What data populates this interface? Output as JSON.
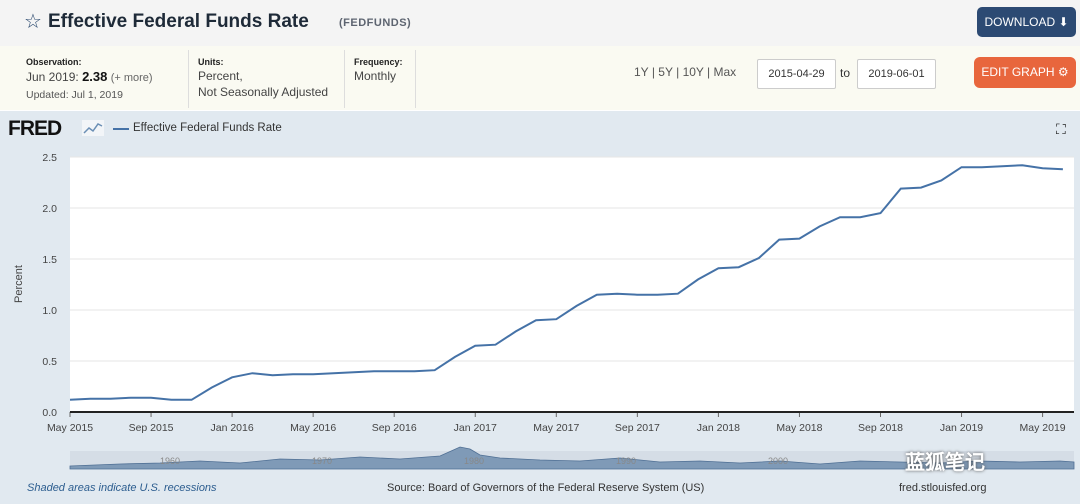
{
  "header": {
    "title": "Effective Federal Funds Rate",
    "series_id": "(FEDFUNDS)",
    "download_label": "DOWNLOAD ⬇"
  },
  "meta": {
    "observation_label": "Observation:",
    "observation_period": "Jun 2019:",
    "observation_value": "2.38",
    "observation_more": "(+ more)",
    "updated": "Updated: Jul 1, 2019",
    "units_label": "Units:",
    "units_line1": "Percent,",
    "units_line2": "Not Seasonally Adjusted",
    "frequency_label": "Frequency:",
    "frequency_value": "Monthly"
  },
  "range": {
    "links": [
      "1Y",
      "5Y",
      "10Y",
      "Max"
    ],
    "separator": "|",
    "start_date": "2015-04-29",
    "to_label": "to",
    "end_date": "2019-06-01",
    "edit_label": "EDIT GRAPH ⚙"
  },
  "brand": {
    "logo": "FRED",
    "fullscreen": "⛶"
  },
  "footer": {
    "recession_note": "Shaded areas indicate U.S. recessions",
    "source": "Source: Board of Governors of the Federal Reserve System (US)",
    "url": "fred.stlouisfed.org"
  },
  "watermark": "蓝狐笔记",
  "colors": {
    "line": "#4572a7",
    "download": "#2c4a73",
    "edit": "#e8663d"
  },
  "chart_data": {
    "type": "line",
    "ylabel": "Percent",
    "ylim": [
      0,
      2.5
    ],
    "yticks": [
      "0.0",
      "0.5",
      "1.0",
      "1.5",
      "2.0",
      "2.5"
    ],
    "xticks": [
      "May 2015",
      "Sep 2015",
      "Jan 2016",
      "May 2016",
      "Sep 2016",
      "Jan 2017",
      "May 2017",
      "Sep 2017",
      "Jan 2018",
      "May 2018",
      "Sep 2018",
      "Jan 2019",
      "May 2019"
    ],
    "navigator_labels": [
      "1960",
      "1970",
      "1980",
      "1990",
      "2000"
    ],
    "series": [
      {
        "name": "Effective Federal Funds Rate",
        "x": [
          "2015-05",
          "2015-06",
          "2015-07",
          "2015-08",
          "2015-09",
          "2015-10",
          "2015-11",
          "2015-12",
          "2016-01",
          "2016-02",
          "2016-03",
          "2016-04",
          "2016-05",
          "2016-06",
          "2016-07",
          "2016-08",
          "2016-09",
          "2016-10",
          "2016-11",
          "2016-12",
          "2017-01",
          "2017-02",
          "2017-03",
          "2017-04",
          "2017-05",
          "2017-06",
          "2017-07",
          "2017-08",
          "2017-09",
          "2017-10",
          "2017-11",
          "2017-12",
          "2018-01",
          "2018-02",
          "2018-03",
          "2018-04",
          "2018-05",
          "2018-06",
          "2018-07",
          "2018-08",
          "2018-09",
          "2018-10",
          "2018-11",
          "2018-12",
          "2019-01",
          "2019-02",
          "2019-03",
          "2019-04",
          "2019-05",
          "2019-06"
        ],
        "values": [
          0.12,
          0.13,
          0.13,
          0.14,
          0.14,
          0.12,
          0.12,
          0.24,
          0.34,
          0.38,
          0.36,
          0.37,
          0.37,
          0.38,
          0.39,
          0.4,
          0.4,
          0.4,
          0.41,
          0.54,
          0.65,
          0.66,
          0.79,
          0.9,
          0.91,
          1.04,
          1.15,
          1.16,
          1.15,
          1.15,
          1.16,
          1.3,
          1.41,
          1.42,
          1.51,
          1.69,
          1.7,
          1.82,
          1.91,
          1.91,
          1.95,
          2.19,
          2.2,
          2.27,
          2.4,
          2.4,
          2.41,
          2.42,
          2.39,
          2.38
        ]
      }
    ]
  }
}
